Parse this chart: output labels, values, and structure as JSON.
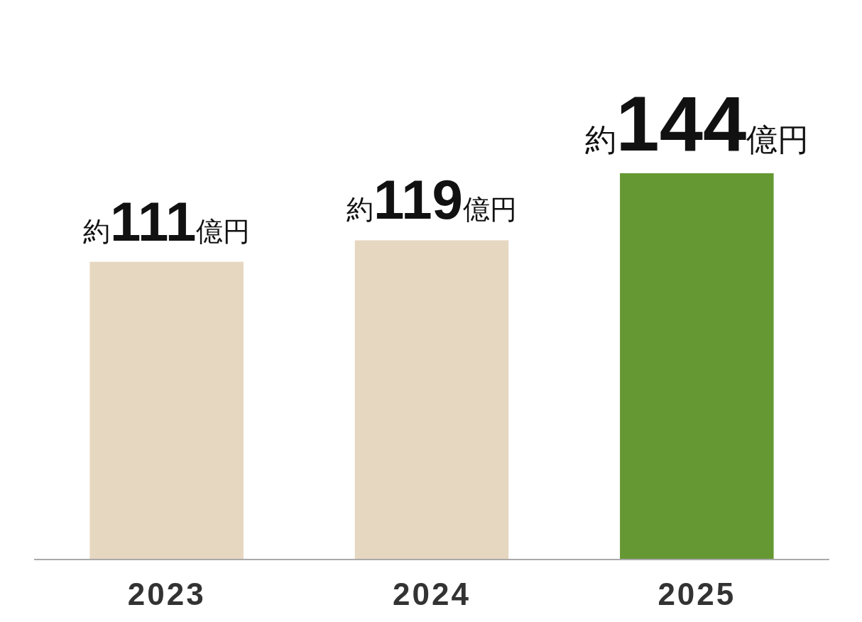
{
  "chart_data": {
    "type": "bar",
    "categories": [
      "2023",
      "2024",
      "2025"
    ],
    "values": [
      111,
      119,
      144
    ],
    "colors": [
      "#e6d7c1",
      "#e6d7c1",
      "#659833"
    ],
    "value_labels": [
      "約111億円",
      "約119億円",
      "約144億円"
    ]
  }
}
